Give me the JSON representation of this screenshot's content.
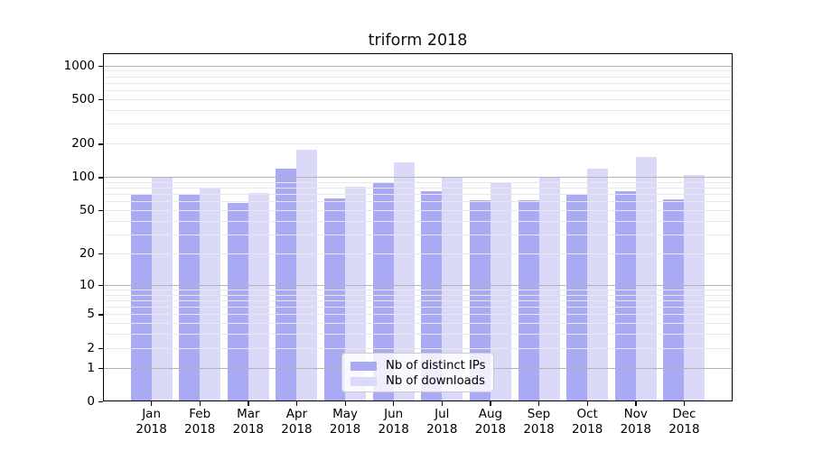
{
  "chart_data": {
    "type": "bar",
    "title": "triform 2018",
    "categories": [
      "Jan",
      "Feb",
      "Mar",
      "Apr",
      "May",
      "Jun",
      "Jul",
      "Aug",
      "Sep",
      "Oct",
      "Nov",
      "Dec"
    ],
    "year": "2018",
    "series": [
      {
        "name": "Nb of distinct IPs",
        "color": "#a9a9f4",
        "values": [
          70,
          70,
          58,
          120,
          64,
          90,
          75,
          62,
          62,
          69,
          75,
          63
        ]
      },
      {
        "name": "Nb of downloads",
        "color": "#dadaf8",
        "values": [
          100,
          80,
          72,
          177,
          82,
          135,
          100,
          88,
          100,
          120,
          152,
          105
        ]
      }
    ],
    "xlabel": "",
    "ylabel": "",
    "y_axis": {
      "scale": "log1p",
      "ticks": [
        0,
        1,
        2,
        5,
        10,
        20,
        50,
        100,
        200,
        500,
        1000
      ],
      "max_value": 1290
    },
    "grid": {
      "major_color": "#b3b3b3",
      "minor_color": "#e8e8e8",
      "major_lines": [
        1,
        10,
        100,
        1000
      ]
    },
    "legend": {
      "position": "lower-center"
    }
  }
}
